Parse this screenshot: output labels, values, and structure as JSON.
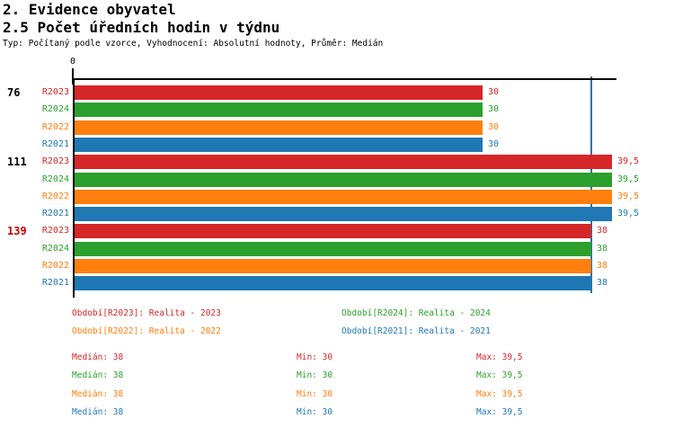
{
  "header": {
    "title_line1": "2. Evidence obyvatel",
    "title_line2": "2.5 Počet úředních hodin v týdnu",
    "subtitle": "Typ: Počítaný podle vzorce, Vyhodnocení: Absolutní hodnoty, Průměr: Medián"
  },
  "colors": {
    "series": {
      "R2023": "#d62728",
      "R2024": "#2ca02c",
      "R2022": "#ff7f0e",
      "R2021": "#1f77b4"
    },
    "axis": "#000000",
    "median_line": "#1f77b4",
    "group_label_default": "#000000",
    "group_label_highlight": "#cc0000"
  },
  "chart_data": {
    "type": "bar",
    "orientation": "horizontal",
    "title": "2.5 Počet úředních hodin v týdnu",
    "xlabel": "",
    "ylabel": "",
    "x_axis": {
      "start_tick_label": "0",
      "min": 0,
      "max_visible": 39.9,
      "grid": false
    },
    "median_line_value": 38,
    "series_order": [
      "R2023",
      "R2024",
      "R2022",
      "R2021"
    ],
    "groups": [
      {
        "label": "76",
        "highlighted": false,
        "values": [
          {
            "series": "R2023",
            "value": 30,
            "display": "30"
          },
          {
            "series": "R2024",
            "value": 30,
            "display": "30"
          },
          {
            "series": "R2022",
            "value": 30,
            "display": "30"
          },
          {
            "series": "R2021",
            "value": 30,
            "display": "30"
          }
        ]
      },
      {
        "label": "111",
        "highlighted": false,
        "values": [
          {
            "series": "R2023",
            "value": 39.5,
            "display": "39,5"
          },
          {
            "series": "R2024",
            "value": 39.5,
            "display": "39,5"
          },
          {
            "series": "R2022",
            "value": 39.5,
            "display": "39,5"
          },
          {
            "series": "R2021",
            "value": 39.5,
            "display": "39,5"
          }
        ]
      },
      {
        "label": "139",
        "highlighted": true,
        "values": [
          {
            "series": "R2023",
            "value": 38,
            "display": "38"
          },
          {
            "series": "R2024",
            "value": 38,
            "display": "38"
          },
          {
            "series": "R2022",
            "value": 38,
            "display": "38"
          },
          {
            "series": "R2021",
            "value": 38,
            "display": "38"
          }
        ]
      }
    ]
  },
  "legend": {
    "items": [
      {
        "series": "R2023",
        "label": "Období[R2023]: Realita - 2023",
        "row": 0,
        "col": 0
      },
      {
        "series": "R2024",
        "label": "Období[R2024]: Realita - 2024",
        "row": 0,
        "col": 1
      },
      {
        "series": "R2022",
        "label": "Období[R2022]: Realita - 2022",
        "row": 1,
        "col": 0
      },
      {
        "series": "R2021",
        "label": "Období[R2021]: Realita - 2021",
        "row": 1,
        "col": 1
      }
    ]
  },
  "stats": {
    "rows": [
      {
        "series": "R2023",
        "median": "Medián: 38",
        "min": "Min: 30",
        "max": "Max: 39,5"
      },
      {
        "series": "R2024",
        "median": "Medián: 38",
        "min": "Min: 30",
        "max": "Max: 39,5"
      },
      {
        "series": "R2022",
        "median": "Medián: 38",
        "min": "Min: 30",
        "max": "Max: 39,5"
      },
      {
        "series": "R2021",
        "median": "Medián: 38",
        "min": "Min: 30",
        "max": "Max: 39,5"
      }
    ]
  }
}
